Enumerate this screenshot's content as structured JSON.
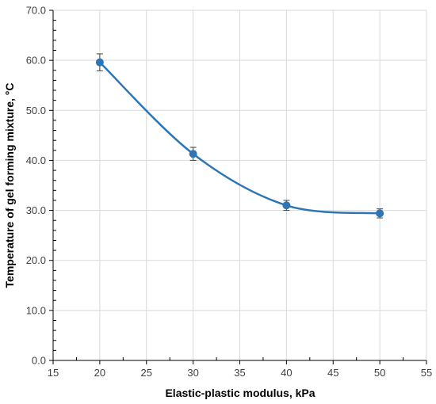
{
  "chart_data": {
    "type": "line",
    "title": "",
    "xlabel": "Elastic-plastic modulus, kPa",
    "ylabel": "Temperature of gel forming mixture, °C",
    "xlim": [
      15,
      55
    ],
    "ylim": [
      0,
      70
    ],
    "x_ticks": [
      15,
      20,
      25,
      30,
      35,
      40,
      45,
      50,
      55
    ],
    "y_ticks": [
      0,
      10,
      20,
      30,
      40,
      50,
      60,
      70
    ],
    "x_tick_labels": [
      "15",
      "20",
      "25",
      "30",
      "35",
      "40",
      "45",
      "50",
      "55"
    ],
    "y_tick_labels": [
      "0.0",
      "10.0",
      "20.0",
      "30.0",
      "40.0",
      "50.0",
      "60.0",
      "70.0"
    ],
    "grid": "vertical and horizontal gridlines",
    "smoothed": true,
    "series": [
      {
        "x": [
          20,
          30,
          40,
          50
        ],
        "y": [
          59.6,
          41.3,
          31.0,
          29.4
        ],
        "error": [
          1.7,
          1.3,
          1.0,
          0.9
        ],
        "color": "#2E75B6"
      }
    ]
  }
}
